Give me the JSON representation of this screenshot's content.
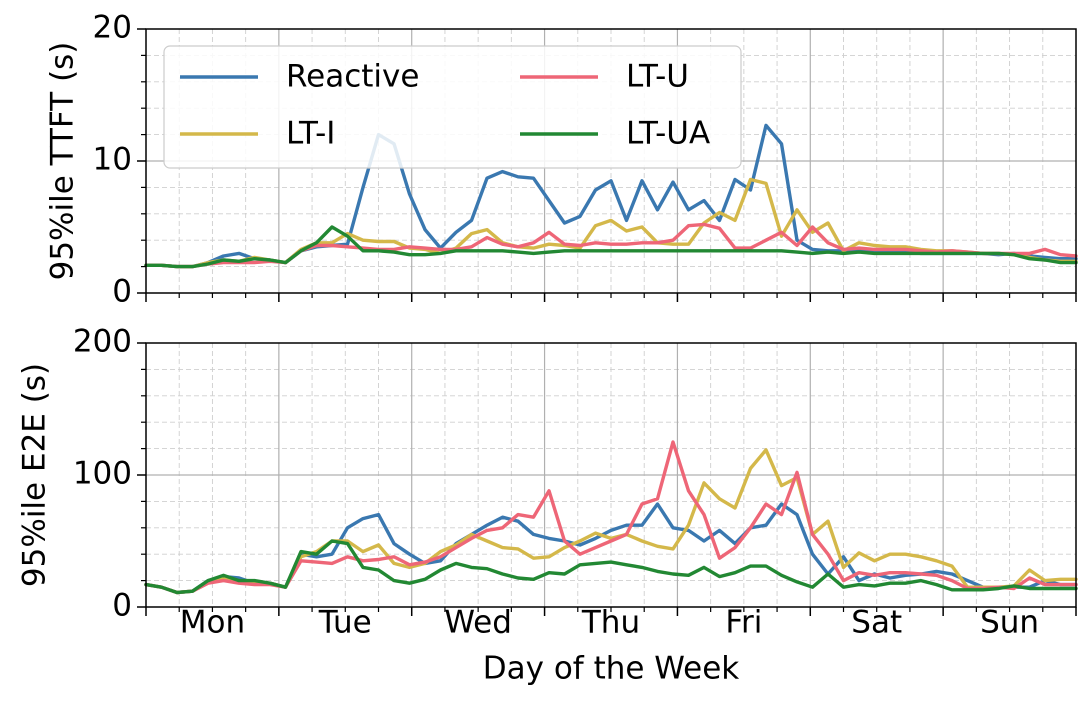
{
  "chart_data": {
    "type": "line",
    "xlabel": "Day of the Week",
    "days": [
      "Mon",
      "Tue",
      "Wed",
      "Thu",
      "Fri",
      "Sat",
      "Sun"
    ],
    "x_range": [
      0,
      7
    ],
    "colors": {
      "Reactive": "#3a78b0",
      "LT-I": "#d4b84a",
      "LT-U": "#ee6677",
      "LT-UA": "#228833"
    },
    "legend": {
      "placement": "top-left",
      "columns": 2,
      "entries": [
        "Reactive",
        "LT-I",
        "LT-U",
        "LT-UA"
      ]
    },
    "panels": [
      {
        "ylabel": "95%ile TTFT (s)",
        "ylim": [
          0,
          20
        ],
        "yticks": [
          "0",
          "10",
          "20"
        ],
        "series": [
          {
            "name": "Reactive",
            "values": [
              2.1,
              2.1,
              2.0,
              2.0,
              2.3,
              2.8,
              3.0,
              2.6,
              2.5,
              2.3,
              3.2,
              3.5,
              3.6,
              3.7,
              8.0,
              12.0,
              11.3,
              7.5,
              4.8,
              3.4,
              4.6,
              5.5,
              8.7,
              9.2,
              8.8,
              8.7,
              7.0,
              5.3,
              5.8,
              7.8,
              8.5,
              5.5,
              8.5,
              6.3,
              8.4,
              6.3,
              7.0,
              5.5,
              8.6,
              7.8,
              12.7,
              11.3,
              4.0,
              3.3,
              3.2,
              3.2,
              3.2,
              3.1,
              3.1,
              3.1,
              3.0,
              3.0,
              3.0,
              3.0,
              3.0,
              2.9,
              3.0,
              2.8,
              2.7,
              2.6,
              2.6
            ]
          },
          {
            "name": "LT-I",
            "values": [
              2.1,
              2.1,
              2.0,
              2.0,
              2.3,
              2.5,
              2.4,
              2.7,
              2.5,
              2.3,
              3.3,
              3.8,
              3.8,
              4.5,
              4.0,
              3.9,
              3.9,
              3.4,
              3.3,
              3.0,
              3.4,
              4.5,
              4.8,
              3.8,
              3.5,
              3.4,
              3.7,
              3.6,
              3.4,
              5.1,
              5.5,
              4.7,
              5.0,
              3.8,
              3.7,
              3.7,
              5.3,
              6.1,
              5.5,
              8.6,
              8.3,
              4.3,
              6.3,
              4.6,
              5.3,
              3.2,
              3.8,
              3.6,
              3.5,
              3.5,
              3.3,
              3.2,
              3.2,
              3.1,
              3.0,
              3.0,
              2.9,
              2.7,
              2.5,
              2.4,
              2.4
            ]
          },
          {
            "name": "LT-U",
            "values": [
              2.1,
              2.1,
              2.0,
              2.0,
              2.2,
              2.3,
              2.3,
              2.3,
              2.4,
              2.3,
              3.2,
              3.6,
              3.6,
              3.5,
              3.4,
              3.3,
              3.3,
              3.5,
              3.4,
              3.3,
              3.3,
              3.5,
              4.2,
              3.7,
              3.5,
              3.8,
              4.6,
              3.7,
              3.6,
              3.8,
              3.7,
              3.7,
              3.8,
              3.8,
              4.0,
              5.1,
              5.2,
              4.9,
              3.4,
              3.4,
              4.0,
              4.6,
              3.6,
              5.0,
              3.8,
              3.3,
              3.4,
              3.3,
              3.3,
              3.3,
              3.2,
              3.1,
              3.2,
              3.1,
              3.0,
              3.0,
              3.0,
              3.0,
              3.3,
              2.9,
              2.8
            ]
          },
          {
            "name": "LT-UA",
            "values": [
              2.1,
              2.1,
              2.0,
              2.0,
              2.2,
              2.5,
              2.4,
              2.6,
              2.5,
              2.3,
              3.2,
              3.8,
              5.0,
              4.3,
              3.2,
              3.2,
              3.1,
              2.9,
              2.9,
              3.0,
              3.2,
              3.2,
              3.2,
              3.2,
              3.1,
              3.0,
              3.1,
              3.2,
              3.2,
              3.2,
              3.2,
              3.2,
              3.2,
              3.2,
              3.2,
              3.2,
              3.2,
              3.2,
              3.2,
              3.2,
              3.2,
              3.2,
              3.1,
              3.0,
              3.1,
              3.0,
              3.1,
              3.0,
              3.0,
              3.0,
              3.0,
              3.0,
              3.0,
              3.0,
              3.0,
              3.0,
              2.9,
              2.6,
              2.5,
              2.3,
              2.3
            ]
          }
        ]
      },
      {
        "ylabel": "95%ile E2E (s)",
        "ylim": [
          0,
          200
        ],
        "yticks": [
          "0",
          "100",
          "200"
        ],
        "series": [
          {
            "name": "Reactive",
            "values": [
              17,
              15,
              11,
              12,
              20,
              23,
              22,
              18,
              18,
              15,
              40,
              38,
              40,
              60,
              67,
              70,
              48,
              40,
              33,
              35,
              48,
              55,
              62,
              68,
              65,
              55,
              52,
              50,
              47,
              52,
              58,
              62,
              62,
              78,
              60,
              58,
              50,
              58,
              48,
              60,
              62,
              78,
              70,
              40,
              25,
              38,
              20,
              25,
              22,
              24,
              25,
              27,
              25,
              20,
              15,
              15,
              15,
              15,
              20,
              17,
              17
            ]
          },
          {
            "name": "LT-I",
            "values": [
              17,
              15,
              11,
              12,
              19,
              22,
              19,
              18,
              18,
              15,
              38,
              42,
              50,
              50,
              42,
              47,
              33,
              30,
              33,
              42,
              47,
              55,
              50,
              45,
              44,
              37,
              38,
              45,
              50,
              56,
              52,
              55,
              50,
              46,
              44,
              62,
              94,
              82,
              75,
              105,
              119,
              92,
              98,
              55,
              65,
              30,
              41,
              35,
              40,
              40,
              38,
              35,
              31,
              15,
              15,
              15,
              16,
              28,
              20,
              21,
              21
            ]
          },
          {
            "name": "LT-U",
            "values": [
              17,
              15,
              11,
              12,
              18,
              20,
              18,
              17,
              17,
              15,
              35,
              34,
              33,
              38,
              35,
              36,
              38,
              32,
              34,
              38,
              45,
              52,
              58,
              60,
              70,
              68,
              88,
              50,
              40,
              45,
              50,
              55,
              78,
              82,
              125,
              88,
              70,
              37,
              45,
              60,
              78,
              70,
              102,
              55,
              40,
              20,
              26,
              24,
              26,
              26,
              25,
              24,
              20,
              14,
              14,
              15,
              14,
              22,
              17,
              17,
              17
            ]
          },
          {
            "name": "LT-UA",
            "values": [
              17,
              15,
              11,
              12,
              20,
              24,
              20,
              20,
              18,
              15,
              42,
              40,
              50,
              48,
              30,
              28,
              20,
              18,
              21,
              28,
              33,
              30,
              29,
              25,
              22,
              21,
              26,
              25,
              32,
              33,
              34,
              32,
              30,
              27,
              25,
              24,
              30,
              23,
              26,
              31,
              31,
              24,
              19,
              15,
              25,
              15,
              17,
              16,
              18,
              18,
              20,
              17,
              13,
              13,
              13,
              14,
              16,
              14,
              14,
              14,
              14
            ]
          }
        ]
      }
    ]
  }
}
